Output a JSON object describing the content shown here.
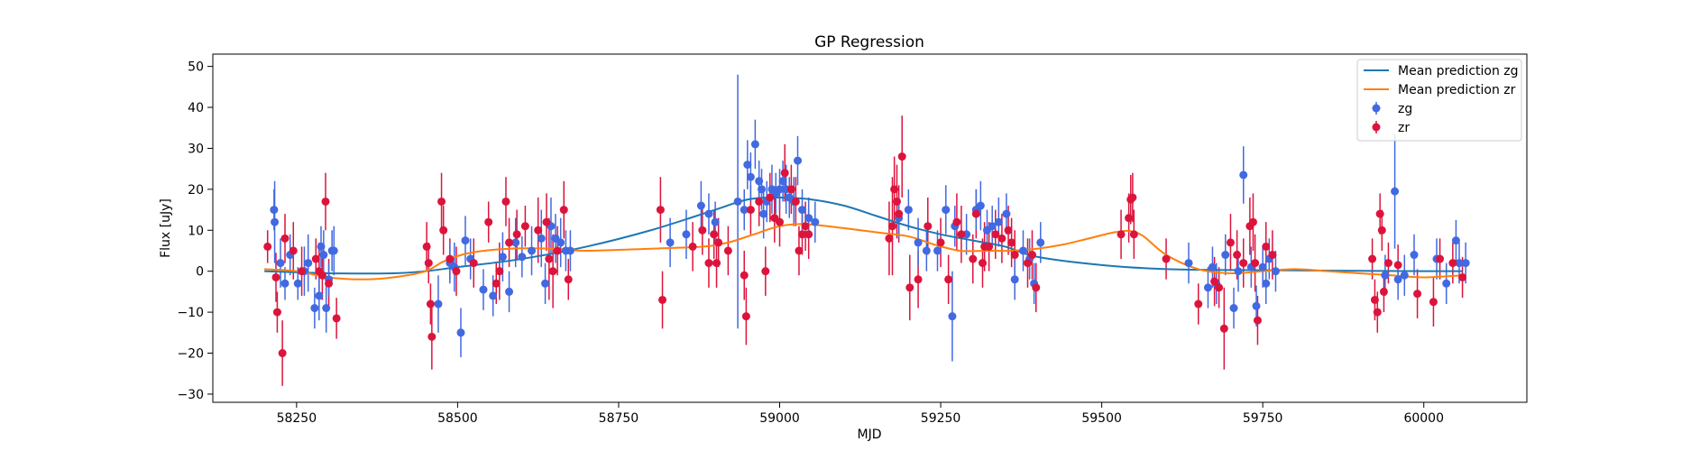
{
  "chart_data": {
    "type": "scatter",
    "title": "GP Regression",
    "xlabel": "MJD",
    "ylabel": "Flux [uJy]",
    "xlim": [
      58120,
      60160
    ],
    "ylim": [
      -32,
      53
    ],
    "xticks": [
      58250,
      58500,
      58750,
      59000,
      59250,
      59500,
      59750,
      60000
    ],
    "yticks": [
      -30,
      -20,
      -10,
      0,
      10,
      20,
      30,
      40,
      50
    ],
    "grid": false,
    "legend_position": "top-right",
    "legend": [
      "Mean prediction zg",
      "Mean prediction zr",
      "zg",
      "zr"
    ],
    "colors": {
      "mean_zg": "#1f77b4",
      "mean_zr": "#ff7f0e",
      "zg": "#4169e1",
      "zr": "#dc143c"
    },
    "mean_zg": {
      "x": [
        58200,
        58300,
        58400,
        58450,
        58500,
        58600,
        58700,
        58800,
        58900,
        58950,
        59000,
        59050,
        59100,
        59150,
        59200,
        59250,
        59300,
        59350,
        59400,
        59500,
        59600,
        59700,
        59800,
        59900,
        60000,
        60060
      ],
      "y": [
        0,
        -0.5,
        -0.5,
        0,
        1,
        3,
        6,
        10,
        15,
        17.5,
        18,
        17.5,
        16,
        13.5,
        11,
        9,
        7.5,
        6,
        3.5,
        1.5,
        0.5,
        0.3,
        0.2,
        0.1,
        0,
        0
      ]
    },
    "mean_zr": {
      "x": [
        58200,
        58250,
        58300,
        58350,
        58400,
        58450,
        58480,
        58520,
        58580,
        58650,
        58700,
        58800,
        58880,
        58920,
        58960,
        59000,
        59040,
        59100,
        59150,
        59200,
        59240,
        59280,
        59320,
        59360,
        59400,
        59440,
        59480,
        59520,
        59545,
        59565,
        59600,
        59650,
        59700,
        59750,
        59800,
        59850,
        59900,
        59950,
        60000,
        60060
      ],
      "y": [
        0.5,
        0,
        -1.5,
        -2,
        -1.5,
        0,
        2.5,
        4.5,
        5.5,
        5.5,
        5,
        5.5,
        6,
        7,
        9,
        11,
        11.5,
        10.5,
        9.5,
        8.5,
        6.5,
        5,
        5,
        5,
        5.5,
        6.5,
        8,
        9.5,
        9.8,
        8.5,
        4,
        0.5,
        -0.5,
        0,
        0.5,
        0,
        -0.5,
        -1,
        -1.5,
        -1
      ]
    },
    "zg": {
      "x": [
        58215,
        58216,
        58225,
        58232,
        58240,
        58252,
        58262,
        58268,
        58278,
        58285,
        58288,
        58292,
        58296,
        58300,
        58305,
        58308,
        58470,
        58488,
        58495,
        58505,
        58512,
        58520,
        58540,
        58555,
        58570,
        58580,
        58590,
        58600,
        58615,
        58630,
        58636,
        58645,
        58652,
        58660,
        58668,
        58675,
        58830,
        58855,
        58878,
        58890,
        58900,
        58935,
        58945,
        58950,
        58955,
        58962,
        58968,
        58972,
        58975,
        58980,
        58988,
        58994,
        59000,
        59005,
        59010,
        59015,
        59022,
        59028,
        59035,
        59045,
        59055,
        59185,
        59200,
        59215,
        59228,
        59245,
        59258,
        59268,
        59272,
        59290,
        59305,
        59312,
        59322,
        59330,
        59340,
        59352,
        59365,
        59378,
        59388,
        59395,
        59405,
        59635,
        59665,
        59672,
        59678,
        59692,
        59705,
        59712,
        59720,
        59732,
        59740,
        59750,
        59755,
        59760,
        59770,
        59940,
        59955,
        59960,
        59970,
        59985,
        60020,
        60035,
        60050,
        60055,
        60065
      ],
      "y": [
        15,
        12,
        2,
        -3,
        4,
        -3,
        0,
        2,
        -9,
        -6,
        6,
        4,
        -9,
        -2,
        5,
        5,
        -8,
        2,
        1,
        -15,
        7.5,
        3,
        -4.5,
        -6,
        3.5,
        -5,
        7,
        3.5,
        5,
        8,
        -3,
        11,
        8,
        7,
        5,
        5,
        7,
        9,
        16,
        14,
        12,
        17,
        15,
        26,
        23,
        31,
        22,
        20,
        14,
        17,
        20,
        19,
        20,
        22,
        20,
        18,
        17,
        27,
        15,
        13,
        12,
        13,
        15,
        7,
        5,
        5,
        15,
        -11,
        11,
        9,
        15,
        16,
        10,
        11,
        12,
        14,
        -2,
        5,
        3,
        -3,
        7,
        2,
        -4,
        1,
        -3,
        4,
        -9,
        0,
        23.5,
        1,
        -8.5,
        1,
        -3,
        3,
        0,
        -1,
        19.5,
        -2,
        -1,
        4,
        3,
        -3,
        7.5,
        2,
        2
      ],
      "err": [
        5,
        10,
        6,
        4,
        5,
        4,
        6,
        7,
        5,
        6,
        5,
        6,
        6,
        4,
        5,
        6,
        7,
        5,
        6,
        6,
        6,
        5,
        5,
        5,
        6,
        5,
        6,
        5,
        6,
        7,
        5,
        7,
        6,
        6,
        5,
        5,
        6,
        6,
        6,
        5,
        5,
        31,
        5,
        6,
        6,
        6,
        5,
        5,
        6,
        5,
        6,
        5,
        5,
        5,
        6,
        5,
        6,
        6,
        5,
        5,
        5,
        5,
        5,
        6,
        5,
        5,
        6,
        11,
        5,
        5,
        5,
        6,
        5,
        5,
        6,
        5,
        5,
        5,
        5,
        5,
        5,
        5,
        5,
        5,
        5,
        5,
        5,
        5,
        7,
        5,
        5,
        5,
        5,
        5,
        5,
        5,
        14,
        5,
        5,
        5,
        5,
        5,
        5,
        5,
        5
      ]
    },
    "zr": {
      "x": [
        58205,
        58218,
        58220,
        58228,
        58232,
        58245,
        58258,
        58280,
        58285,
        58290,
        58295,
        58300,
        58312,
        58452,
        58455,
        58458,
        58460,
        58475,
        58478,
        58488,
        58498,
        58525,
        58548,
        58560,
        58565,
        58575,
        58580,
        58592,
        58605,
        58625,
        58638,
        58642,
        58648,
        58655,
        58665,
        58672,
        58815,
        58818,
        58865,
        58880,
        58890,
        58898,
        58902,
        58905,
        58920,
        58945,
        58948,
        58955,
        58968,
        58978,
        58985,
        58992,
        59000,
        59008,
        59018,
        59025,
        59030,
        59035,
        59040,
        59045,
        59170,
        59175,
        59178,
        59182,
        59185,
        59190,
        59202,
        59215,
        59230,
        59250,
        59262,
        59275,
        59282,
        59300,
        59305,
        59315,
        59318,
        59325,
        59335,
        59345,
        59355,
        59360,
        59365,
        59385,
        59392,
        59398,
        59530,
        59542,
        59545,
        59548,
        59550,
        59600,
        59650,
        59675,
        59682,
        59690,
        59700,
        59710,
        59720,
        59730,
        59735,
        59738,
        59742,
        59755,
        59765,
        59920,
        59924,
        59928,
        59932,
        59935,
        59938,
        59945,
        59960,
        59990,
        60015,
        60025,
        60045,
        60060
      ],
      "y": [
        6,
        -1.5,
        -10,
        -20,
        8,
        5,
        0,
        3,
        0,
        -1,
        17,
        -3,
        -11.5,
        6,
        2,
        -8,
        -16,
        17,
        10,
        3,
        0,
        2,
        12,
        -3,
        0,
        17,
        7,
        9,
        11,
        10,
        12,
        3,
        0,
        5,
        15,
        -2,
        15,
        -7,
        6,
        10,
        2,
        9,
        2,
        7,
        5,
        -1,
        -11,
        15,
        17,
        0,
        18,
        13,
        12,
        24,
        20,
        17,
        5,
        9,
        11,
        9,
        8,
        11,
        20,
        17,
        14,
        28,
        -4,
        -2,
        11,
        7,
        -2,
        12,
        9,
        3,
        14,
        2,
        6,
        6,
        9,
        8,
        10,
        7,
        4,
        2,
        4,
        -4,
        9,
        13,
        17.5,
        18,
        9,
        3,
        -8,
        -2.5,
        -4,
        -14,
        7,
        4,
        2,
        11,
        12,
        2,
        -12,
        6,
        4,
        3,
        -7,
        -10,
        14,
        10,
        -5,
        2,
        1.5,
        -5.5,
        -7.5,
        3,
        2,
        -1.5
      ],
      "err": [
        4,
        6,
        5,
        8,
        6,
        7,
        6,
        5,
        7,
        6,
        7,
        6,
        5,
        6,
        5,
        5,
        8,
        7,
        6,
        5,
        6,
        6,
        5,
        5,
        7,
        6,
        6,
        6,
        5,
        8,
        7,
        10,
        9,
        6,
        7,
        5,
        8,
        7,
        6,
        6,
        6,
        6,
        6,
        6,
        6,
        6,
        7,
        6,
        6,
        6,
        6,
        6,
        6,
        7,
        6,
        6,
        6,
        5,
        6,
        6,
        9,
        12,
        8,
        9,
        7,
        10,
        8,
        7,
        7,
        6,
        6,
        7,
        7,
        6,
        6,
        6,
        6,
        6,
        6,
        6,
        6,
        6,
        6,
        6,
        6,
        6,
        6,
        6,
        6,
        6,
        6,
        5,
        5,
        6,
        5,
        10,
        7,
        6,
        6,
        7,
        7,
        7,
        6,
        6,
        6,
        5,
        5,
        5,
        5,
        5,
        5,
        5,
        5,
        6,
        6,
        5,
        5,
        5
      ]
    }
  }
}
